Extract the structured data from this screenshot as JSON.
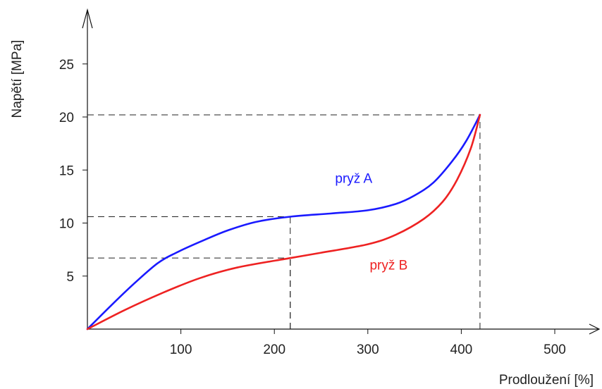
{
  "chart_data": {
    "type": "line",
    "title": "",
    "xlabel": "Prodloužení [%]",
    "ylabel": "Napětí [MPa]",
    "xlim": [
      0,
      540
    ],
    "ylim": [
      0,
      29
    ],
    "grid": false,
    "x_ticks": [
      100,
      200,
      300,
      400,
      500
    ],
    "y_ticks": [
      5,
      10,
      15,
      20,
      25
    ],
    "series": [
      {
        "name": "pryž A",
        "color": "#1a1aff",
        "x": [
          0,
          25,
          50,
          75,
          95,
          125,
          150,
          180,
          217,
          260,
          300,
          330,
          350,
          370,
          390,
          405,
          420
        ],
        "y": [
          0,
          2.2,
          4.3,
          6.2,
          7.2,
          8.4,
          9.3,
          10.1,
          10.6,
          10.9,
          11.2,
          11.8,
          12.6,
          13.8,
          15.8,
          17.7,
          20.2
        ]
      },
      {
        "name": "pryž B",
        "color": "#ee2222",
        "x": [
          0,
          40,
          80,
          120,
          160,
          217,
          250,
          300,
          330,
          360,
          380,
          395,
          410,
          420
        ],
        "y": [
          0,
          1.8,
          3.4,
          4.8,
          5.8,
          6.7,
          7.2,
          8.0,
          8.9,
          10.4,
          12.0,
          14.0,
          17.0,
          20.2
        ]
      }
    ],
    "reference_lines": [
      {
        "x": 217,
        "y": 10.6
      },
      {
        "x": 217,
        "y": 6.7
      },
      {
        "x": 420,
        "y": 20.2
      }
    ],
    "series_labels": [
      {
        "text": "pryž A",
        "x": 265,
        "y": 13.8
      },
      {
        "text": "pryž B",
        "x": 302,
        "y": 5.6
      }
    ]
  }
}
